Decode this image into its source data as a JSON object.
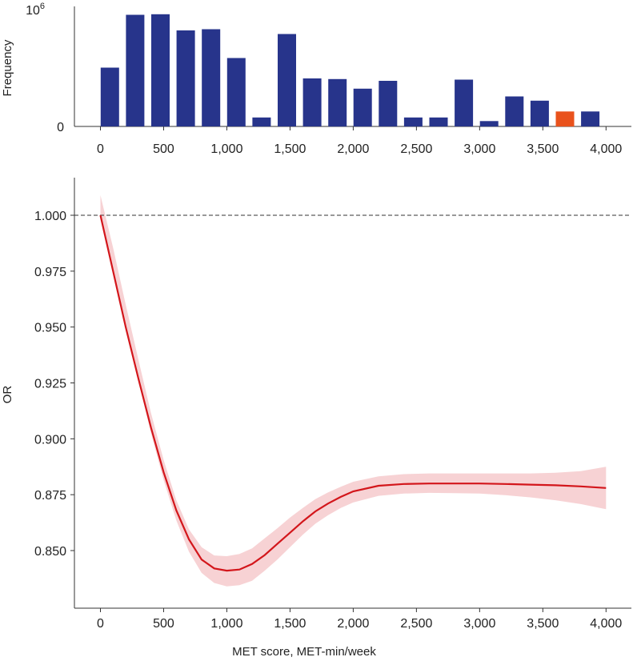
{
  "chart_data": [
    {
      "type": "bar",
      "name": "histogram",
      "ylabel": "Frequency",
      "ymax_label_base": "10",
      "ymax_label_exp": "6",
      "yzero_label": "0",
      "ylim": [
        0,
        1000000
      ],
      "xlim": [
        0,
        4000
      ],
      "xticks": [
        0,
        500,
        1000,
        1500,
        2000,
        2500,
        3000,
        3500,
        4000
      ],
      "xtick_labels": [
        "0",
        "500",
        "1,000",
        "1,500",
        "2,000",
        "2,500",
        "3,000",
        "3,500",
        "4,000"
      ],
      "bin_width": 200,
      "bin_centers": [
        75,
        275,
        475,
        675,
        875,
        1075,
        1275,
        1475,
        1675,
        1875,
        2075,
        2275,
        2475,
        2675,
        2875,
        3075,
        3275,
        3475,
        3675,
        3875
      ],
      "values": [
        490000,
        930000,
        935000,
        800000,
        810000,
        570000,
        75000,
        770000,
        400000,
        395000,
        315000,
        380000,
        75000,
        75000,
        390000,
        45000,
        250000,
        215000,
        125000,
        125000
      ],
      "highlight_index": 18,
      "bar_color": "#27348b",
      "highlight_color": "#e9521c"
    },
    {
      "type": "line",
      "name": "or-curve",
      "xlabel": "MET score, MET-min/week",
      "ylabel": "OR",
      "xlim": [
        -200,
        4200
      ],
      "ylim": [
        0.8225,
        1.0175
      ],
      "yticks": [
        0.85,
        0.875,
        0.9,
        0.925,
        0.95,
        0.975,
        1.0
      ],
      "ytick_labels": [
        "0.850",
        "0.875",
        "0.900",
        "0.925",
        "0.950",
        "0.975",
        "1.000"
      ],
      "xticks": [
        0,
        500,
        1000,
        1500,
        2000,
        2500,
        3000,
        3500,
        4000
      ],
      "xtick_labels": [
        "0",
        "500",
        "1,000",
        "1,500",
        "2,000",
        "2,500",
        "3,000",
        "3,500",
        "4,000"
      ],
      "reference_line": 1.0,
      "line_color": "#d3161b",
      "band_color": "#f7d2d4",
      "series": [
        {
          "name": "OR",
          "x": [
            0,
            100,
            200,
            300,
            400,
            500,
            600,
            700,
            800,
            900,
            1000,
            1100,
            1200,
            1300,
            1400,
            1500,
            1600,
            1700,
            1800,
            1900,
            2000,
            2200,
            2400,
            2600,
            2800,
            3000,
            3200,
            3400,
            3600,
            3800,
            4000
          ],
          "y": [
            1.0,
            0.975,
            0.95,
            0.927,
            0.905,
            0.885,
            0.868,
            0.855,
            0.846,
            0.842,
            0.841,
            0.8415,
            0.844,
            0.848,
            0.853,
            0.858,
            0.863,
            0.8675,
            0.871,
            0.874,
            0.8765,
            0.879,
            0.8798,
            0.88,
            0.88,
            0.88,
            0.8798,
            0.8795,
            0.8792,
            0.8787,
            0.878
          ]
        }
      ],
      "ci_lower": [
        1.0,
        0.9755,
        0.9495,
        0.926,
        0.9025,
        0.8815,
        0.8635,
        0.8495,
        0.84,
        0.8355,
        0.834,
        0.8345,
        0.8365,
        0.841,
        0.846,
        0.8515,
        0.857,
        0.862,
        0.8658,
        0.869,
        0.8715,
        0.8745,
        0.8755,
        0.8758,
        0.8757,
        0.8755,
        0.8748,
        0.8738,
        0.8725,
        0.8708,
        0.8685
      ],
      "ci_upper": [
        1.009,
        0.9855,
        0.96,
        0.9355,
        0.9115,
        0.8905,
        0.8725,
        0.8595,
        0.8515,
        0.8478,
        0.8475,
        0.8485,
        0.851,
        0.8555,
        0.86,
        0.8648,
        0.869,
        0.873,
        0.876,
        0.8785,
        0.8808,
        0.8832,
        0.8842,
        0.8845,
        0.8845,
        0.8845,
        0.8845,
        0.8845,
        0.8848,
        0.8855,
        0.8875
      ]
    }
  ]
}
